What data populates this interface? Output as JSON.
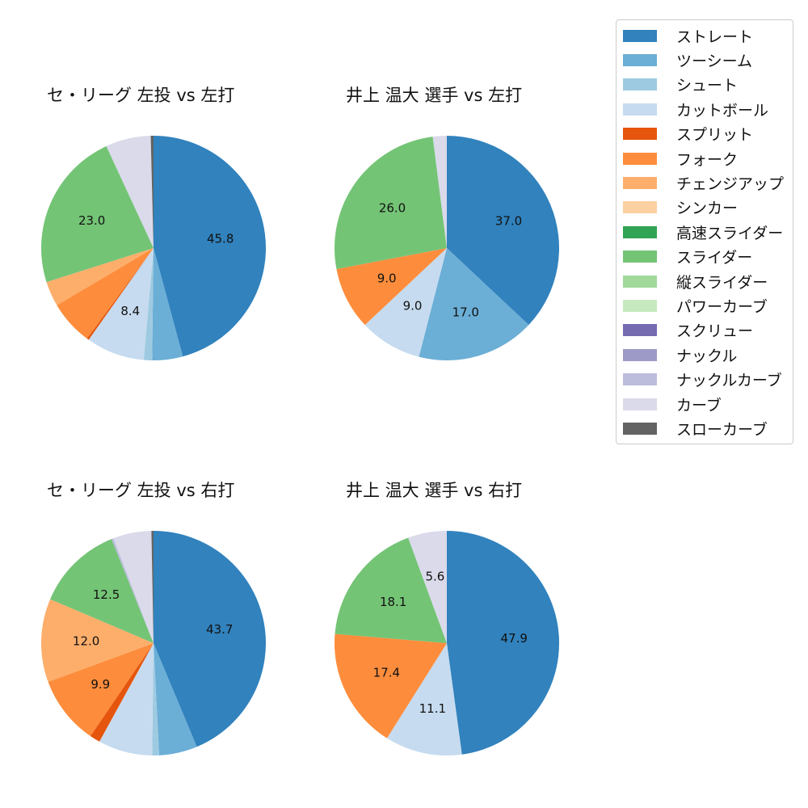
{
  "legend": {
    "items": [
      {
        "label": "ストレート",
        "color": "#3182bd"
      },
      {
        "label": "ツーシーム",
        "color": "#6baed6"
      },
      {
        "label": "シュート",
        "color": "#9ecae1"
      },
      {
        "label": "カットボール",
        "color": "#c6dbef"
      },
      {
        "label": "スプリット",
        "color": "#e6550d"
      },
      {
        "label": "フォーク",
        "color": "#fd8d3c"
      },
      {
        "label": "チェンジアップ",
        "color": "#fdae6b"
      },
      {
        "label": "シンカー",
        "color": "#fdd0a2"
      },
      {
        "label": "高速スライダー",
        "color": "#31a354"
      },
      {
        "label": "スライダー",
        "color": "#74c476"
      },
      {
        "label": "縦スライダー",
        "color": "#a1d99b"
      },
      {
        "label": "パワーカーブ",
        "color": "#c7e9c0"
      },
      {
        "label": "スクリュー",
        "color": "#756bb1"
      },
      {
        "label": "ナックル",
        "color": "#9e9ac8"
      },
      {
        "label": "ナックルカーブ",
        "color": "#bcbddc"
      },
      {
        "label": "カーブ",
        "color": "#dadaeb"
      },
      {
        "label": "スローカーブ",
        "color": "#636363"
      }
    ]
  },
  "panels": [
    {
      "title": "セ・リーグ 左投 vs 左打"
    },
    {
      "title": "井上 温大 選手 vs 左打"
    },
    {
      "title": "セ・リーグ 左投 vs 右打"
    },
    {
      "title": "井上 温大 選手 vs 右打"
    }
  ],
  "chart_data": [
    {
      "type": "pie",
      "title": "セ・リーグ 左投 vs 左打",
      "labels": [
        "ストレート",
        "ツーシーム",
        "シュート",
        "カットボール",
        "スプリット",
        "フォーク",
        "チェンジアップ",
        "スライダー",
        "カーブ",
        "スローカーブ"
      ],
      "values": [
        45.8,
        4.4,
        1.2,
        8.4,
        0.3,
        6.4,
        3.6,
        23.0,
        6.5,
        0.4
      ],
      "shown_labels": [
        "45.8",
        "",
        "",
        "8.4",
        "",
        "",
        "",
        "23.0",
        "",
        ""
      ],
      "start_angle": 90,
      "direction": "clockwise"
    },
    {
      "type": "pie",
      "title": "井上 温大 選手 vs 左打",
      "labels": [
        "ストレート",
        "ツーシーム",
        "カットボール",
        "フォーク",
        "スライダー",
        "カーブ"
      ],
      "values": [
        37.0,
        17.0,
        9.0,
        9.0,
        26.0,
        2.0
      ],
      "shown_labels": [
        "37.0",
        "17.0",
        "9.0",
        "9.0",
        "26.0",
        ""
      ],
      "start_angle": 90,
      "direction": "clockwise"
    },
    {
      "type": "pie",
      "title": "セ・リーグ 左投 vs 右打",
      "labels": [
        "ストレート",
        "ツーシーム",
        "シュート",
        "カットボール",
        "スプリット",
        "フォーク",
        "チェンジアップ",
        "スライダー",
        "ナックルカーブ",
        "カーブ",
        "スローカーブ"
      ],
      "values": [
        43.7,
        5.5,
        1.0,
        7.8,
        1.5,
        9.9,
        12.0,
        12.5,
        0.3,
        5.5,
        0.3
      ],
      "shown_labels": [
        "43.7",
        "",
        "",
        "",
        "",
        "9.9",
        "12.0",
        "12.5",
        "",
        "",
        ""
      ],
      "start_angle": 90,
      "direction": "clockwise"
    },
    {
      "type": "pie",
      "title": "井上 温大 選手 vs 右打",
      "labels": [
        "ストレート",
        "カットボール",
        "フォーク",
        "スライダー",
        "カーブ"
      ],
      "values": [
        47.9,
        11.1,
        17.4,
        18.1,
        5.6
      ],
      "shown_labels": [
        "47.9",
        "11.1",
        "17.4",
        "18.1",
        "5.6"
      ],
      "start_angle": 90,
      "direction": "clockwise"
    }
  ]
}
